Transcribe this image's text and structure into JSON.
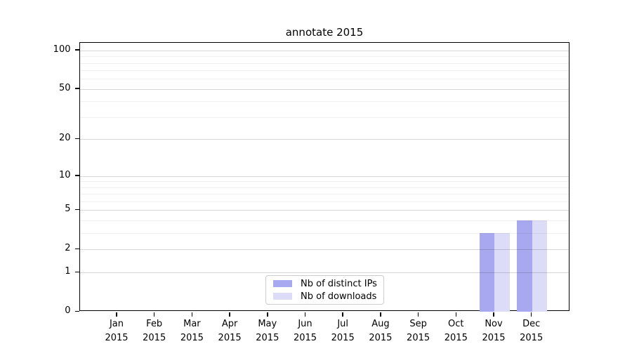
{
  "chart_data": {
    "type": "bar",
    "title": "annotate 2015",
    "categories": [
      "Jan",
      "Feb",
      "Mar",
      "Apr",
      "May",
      "Jun",
      "Jul",
      "Aug",
      "Sep",
      "Oct",
      "Nov",
      "Dec"
    ],
    "category_year": "2015",
    "series": [
      {
        "name": "Nb of distinct IPs",
        "color": "#a8a8f0",
        "values": [
          0,
          0,
          0,
          0,
          0,
          0,
          0,
          0,
          0,
          0,
          3,
          4
        ]
      },
      {
        "name": "Nb of downloads",
        "color": "#dcdcf8",
        "values": [
          0,
          0,
          0,
          0,
          0,
          0,
          0,
          0,
          0,
          0,
          3,
          4
        ]
      }
    ],
    "xlabel": "",
    "ylabel": "",
    "y_scale": "log1p",
    "y_major_ticks": [
      0,
      1,
      2,
      5,
      10,
      20,
      50,
      100
    ],
    "y_minor_ticks": [
      3,
      4,
      6,
      7,
      8,
      9,
      30,
      40,
      60,
      70,
      80,
      90
    ],
    "ylim": [
      0,
      115
    ],
    "grid": "horizontal",
    "legend": {
      "position": "lower-center"
    }
  },
  "colors": {
    "background": "#ffffff",
    "axis": "#000000",
    "legend_border": "#cccccc",
    "bar_distinct_ips": "#a8a8f0",
    "bar_downloads": "#dcdcf8"
  }
}
